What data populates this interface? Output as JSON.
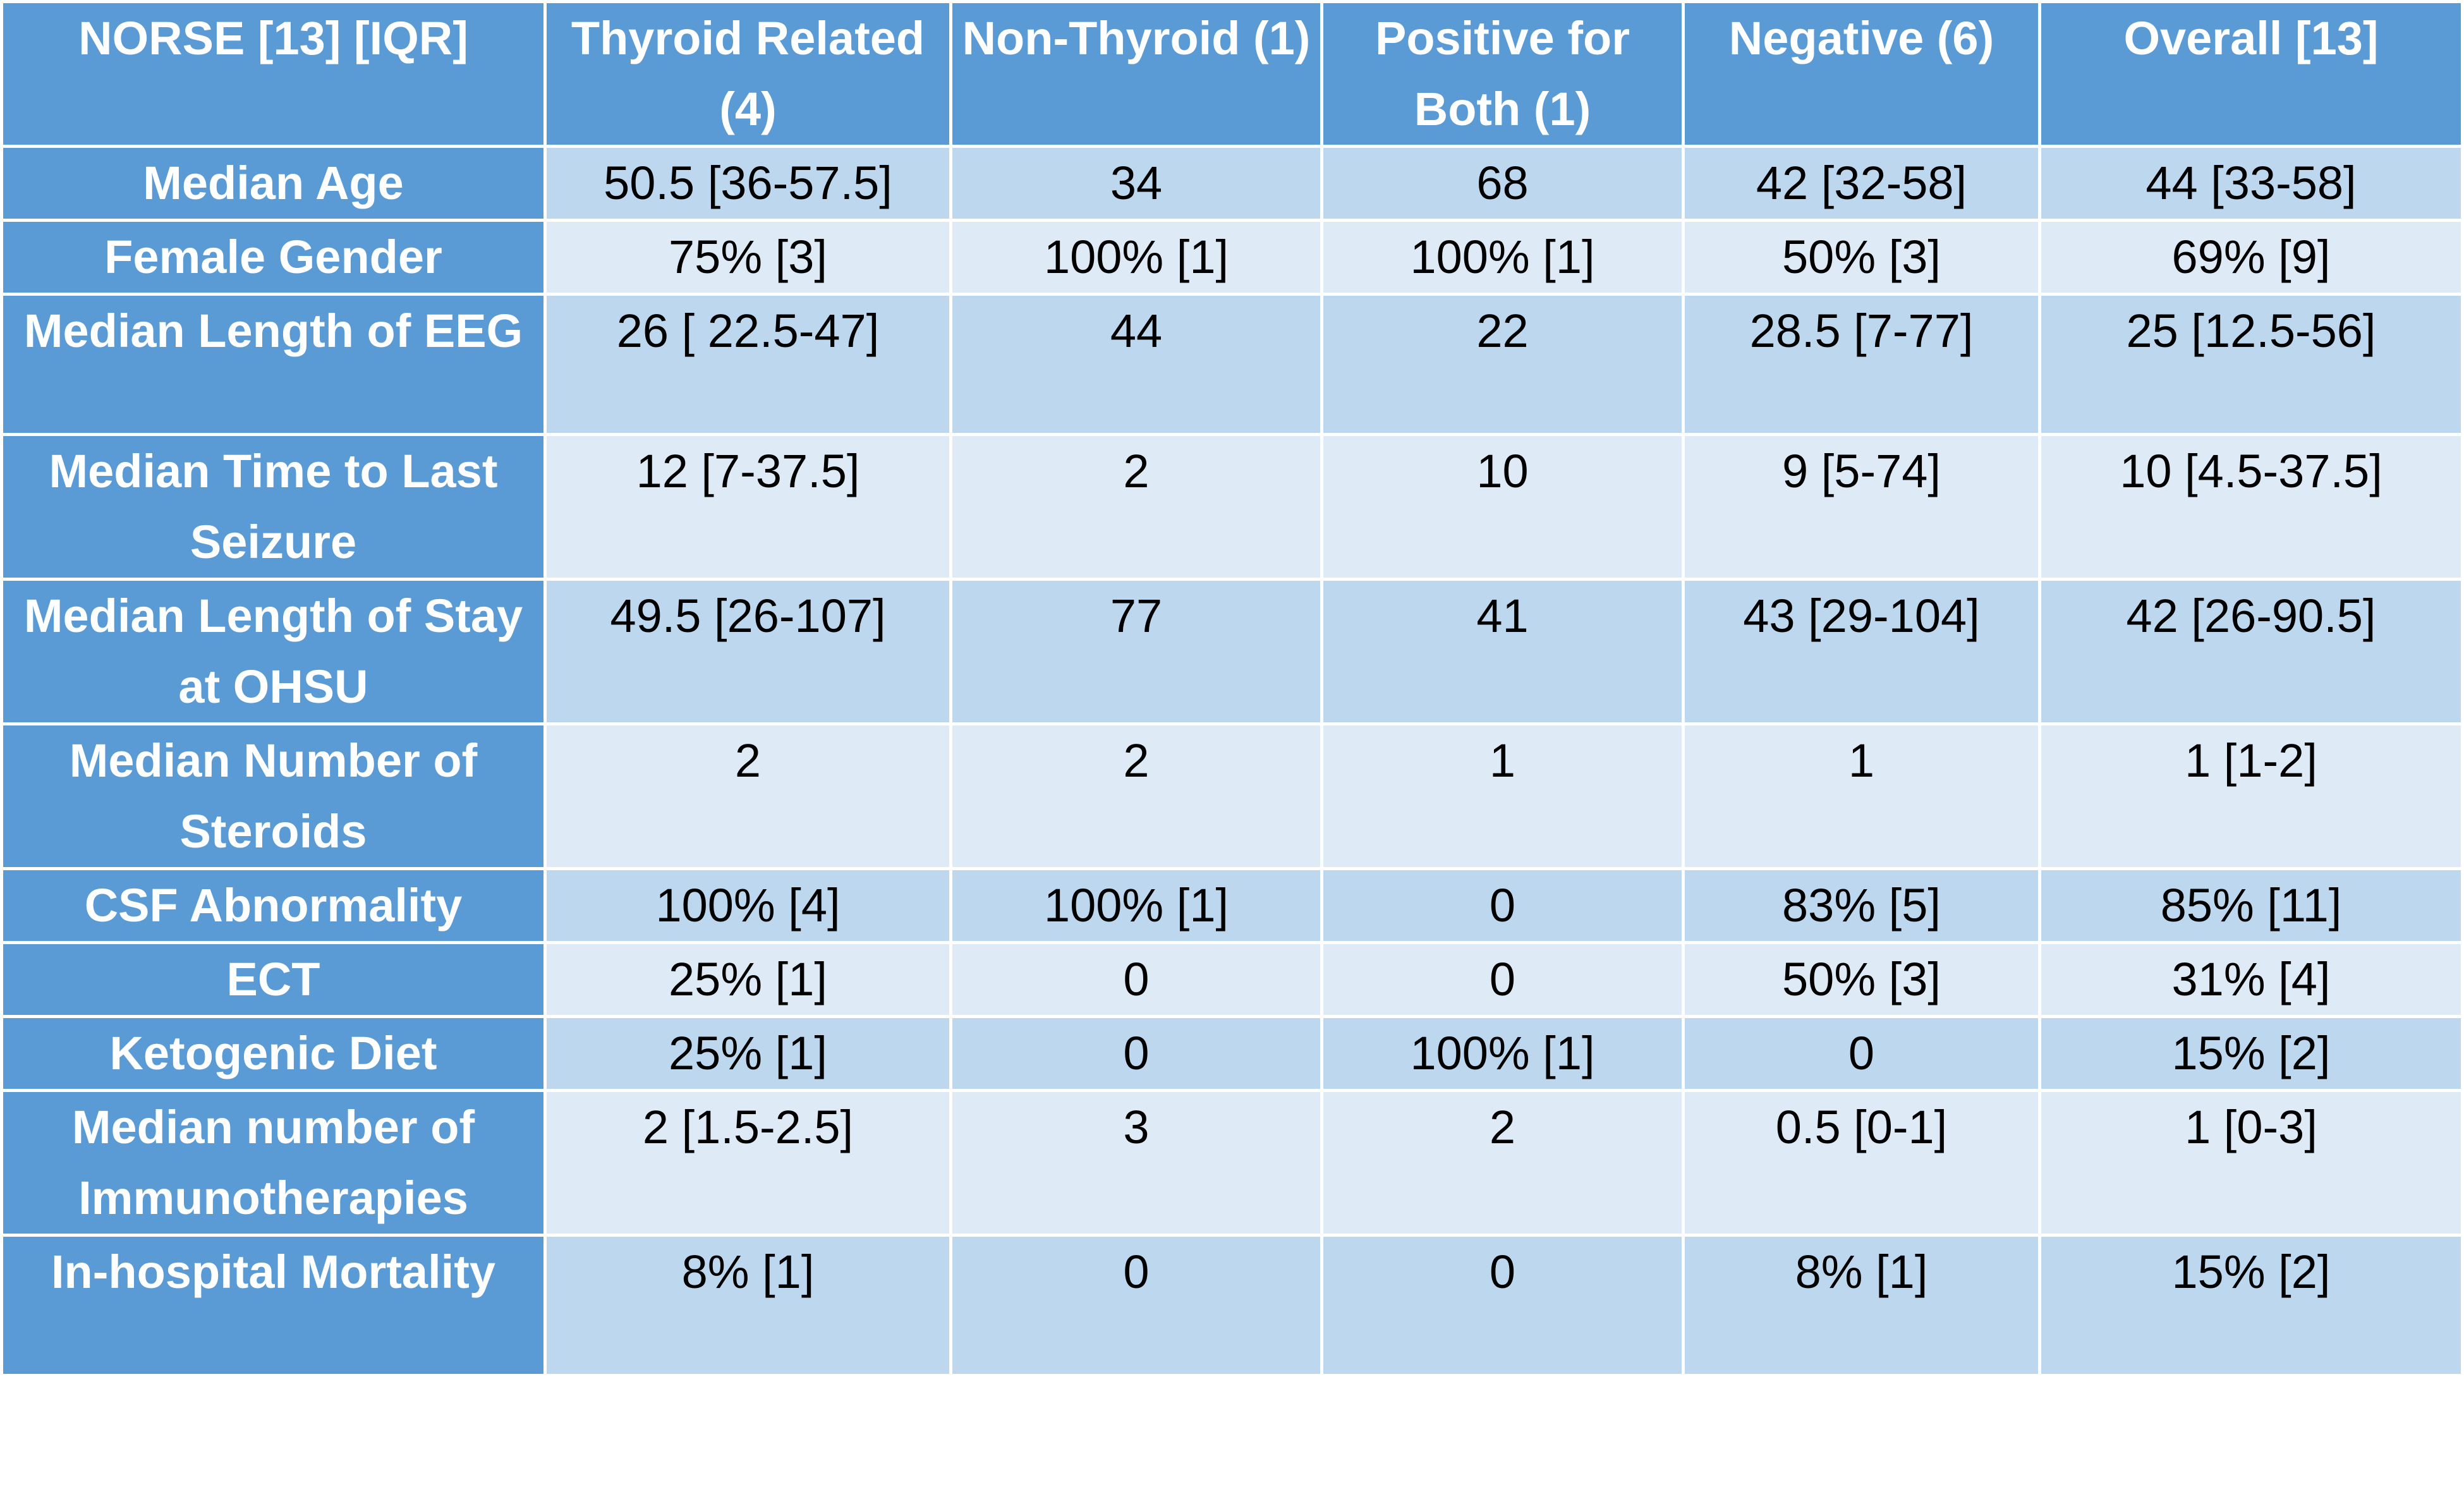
{
  "table": {
    "header": [
      "NORSE [13] [IQR]",
      "Thyroid Related (4)",
      "Non-Thyroid (1)",
      "Positive for Both (1)",
      "Negative (6)",
      "Overall [13]"
    ],
    "rows": [
      [
        "Median Age",
        "50.5 [36-57.5]",
        "34",
        "68",
        "42 [32-58]",
        "44 [33-58]"
      ],
      [
        "Female Gender",
        "75% [3]",
        "100% [1]",
        "100% [1]",
        "50% [3]",
        "69% [9]"
      ],
      [
        "Median Length of EEG",
        "26 [ 22.5-47]",
        "44",
        "22",
        "28.5 [7-77]",
        "25 [12.5-56]"
      ],
      [
        "Median Time to Last Seizure",
        "12 [7-37.5]",
        "2",
        "10",
        "9 [5-74]",
        "10 [4.5-37.5]"
      ],
      [
        "Median Length of Stay at OHSU",
        "49.5 [26-107]",
        "77",
        "41",
        "43 [29-104]",
        "42 [26-90.5]"
      ],
      [
        "Median Number of Steroids",
        "2",
        "2",
        "1",
        "1",
        "1 [1-2]"
      ],
      [
        "CSF Abnormality",
        "100% [4]",
        "100% [1]",
        "0",
        "83% [5]",
        "85% [11]"
      ],
      [
        "ECT",
        "25% [1]",
        "0",
        "0",
        "50% [3]",
        "31% [4]"
      ],
      [
        "Ketogenic Diet",
        "25% [1]",
        "0",
        "100% [1]",
        "0",
        "15% [2]"
      ],
      [
        "Median number of Immunotherapies",
        "2 [1.5-2.5]",
        "3",
        "2",
        "0.5 [0-1]",
        "1 [0-3]"
      ],
      [
        "In-hospital Mortality",
        "8% [1]",
        "0",
        "0",
        "8% [1]",
        "15% [2]"
      ]
    ]
  }
}
